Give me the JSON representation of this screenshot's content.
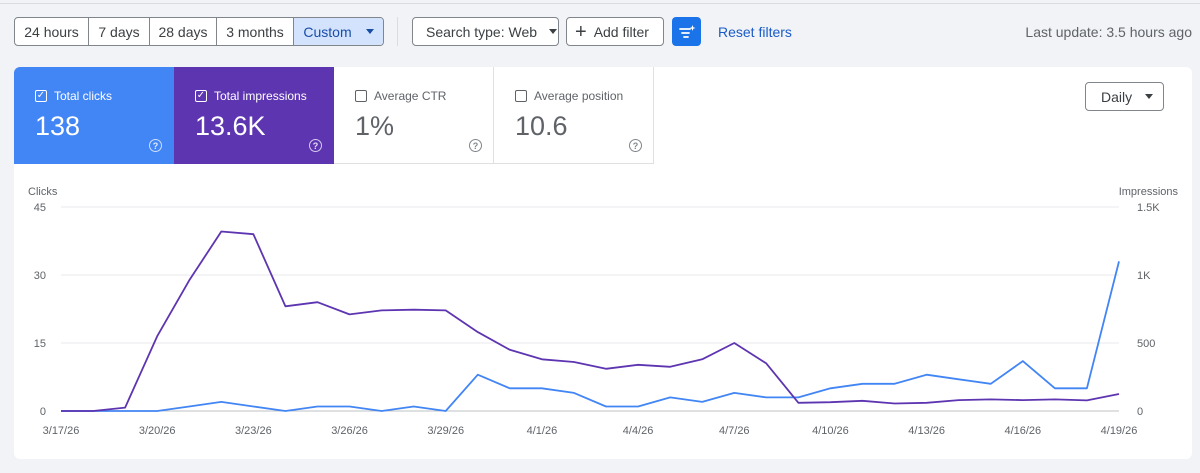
{
  "toolbar": {
    "ranges": [
      "24 hours",
      "7 days",
      "28 days",
      "3 months",
      "Custom"
    ],
    "active_range": "Custom",
    "search_type": "Search type: Web",
    "add_filter": "Add filter",
    "reset_filters": "Reset filters",
    "last_update": "Last update: 3.5 hours ago"
  },
  "metrics": [
    {
      "label": "Total clicks",
      "value": "138",
      "checked": true
    },
    {
      "label": "Total impressions",
      "value": "13.6K",
      "checked": true
    },
    {
      "label": "Average CTR",
      "value": "1%",
      "checked": false
    },
    {
      "label": "Average position",
      "value": "10.6",
      "checked": false
    }
  ],
  "granularity": "Daily",
  "colors": {
    "clicks": "#4285f4",
    "impressions": "#5e35b1",
    "accent": "#1a73e8"
  },
  "icons": [
    "checkbox-icon",
    "help-icon",
    "plus-icon",
    "filter-sparkle-icon",
    "chevron-down-icon"
  ],
  "chart_data": {
    "type": "line",
    "y_left_label": "Clicks",
    "y_right_label": "Impressions",
    "y_left_ticks": [
      "45",
      "30",
      "15",
      "0"
    ],
    "y_right_ticks": [
      "1.5K",
      "1K",
      "500",
      "0"
    ],
    "y_left_range": [
      0,
      45
    ],
    "y_right_range": [
      0,
      1500
    ],
    "x_ticks": [
      "3/17/26",
      "3/20/26",
      "3/23/26",
      "3/26/26",
      "3/29/26",
      "4/1/26",
      "4/4/26",
      "4/7/26",
      "4/10/26",
      "4/13/26",
      "4/16/26",
      "4/19/26"
    ],
    "x": [
      "3/17/26",
      "3/18/26",
      "3/19/26",
      "3/20/26",
      "3/21/26",
      "3/22/26",
      "3/23/26",
      "3/24/26",
      "3/25/26",
      "3/26/26",
      "3/27/26",
      "3/28/26",
      "3/29/26",
      "3/30/26",
      "3/31/26",
      "4/1/26",
      "4/2/26",
      "4/3/26",
      "4/4/26",
      "4/5/26",
      "4/6/26",
      "4/7/26",
      "4/8/26",
      "4/9/26",
      "4/10/26",
      "4/11/26",
      "4/12/26",
      "4/13/26",
      "4/14/26",
      "4/15/26",
      "4/16/26",
      "4/17/26",
      "4/18/26",
      "4/19/26"
    ],
    "series": [
      {
        "name": "Clicks",
        "axis": "left",
        "values": [
          0,
          0,
          0,
          0,
          1,
          2,
          1,
          0,
          1,
          1,
          0,
          1,
          0,
          8,
          5,
          5,
          4,
          1,
          1,
          3,
          2,
          4,
          3,
          3,
          5,
          6,
          6,
          8,
          7,
          6,
          11,
          5,
          5,
          33
        ]
      },
      {
        "name": "Impressions",
        "axis": "right",
        "values": [
          0,
          0,
          25,
          550,
          960,
          1320,
          1300,
          770,
          800,
          710,
          740,
          745,
          740,
          580,
          450,
          380,
          360,
          310,
          340,
          325,
          380,
          500,
          350,
          60,
          65,
          75,
          55,
          60,
          80,
          85,
          80,
          85,
          78,
          125
        ]
      }
    ],
    "grid": true,
    "legend": "none"
  }
}
